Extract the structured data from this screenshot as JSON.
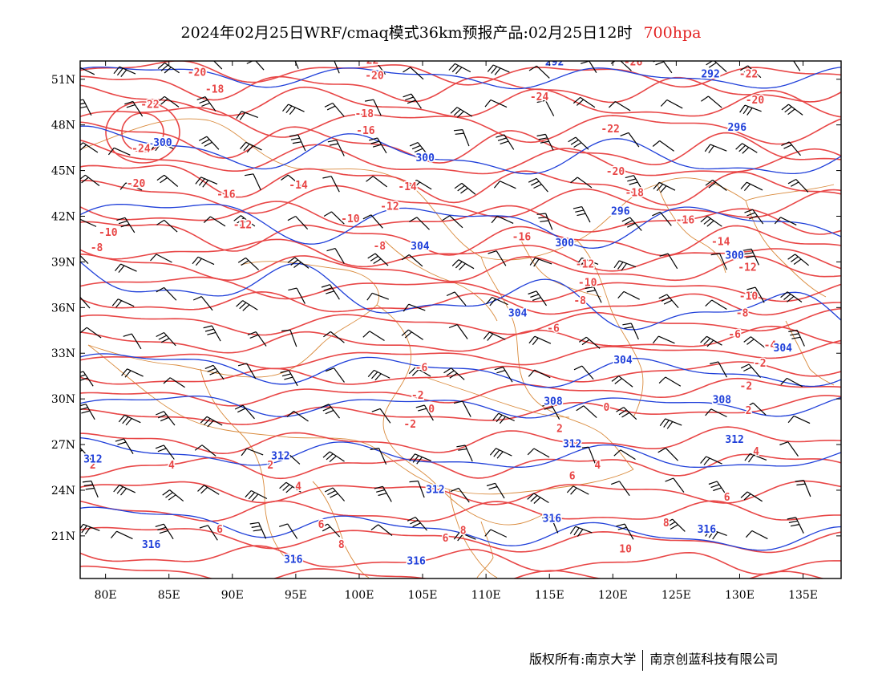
{
  "title": {
    "main": "2024年02月25日WRF/cmaq模式36km预报产品:02月25日12时",
    "level": "700hpa"
  },
  "axes": {
    "lon_ticks": [
      "80E",
      "85E",
      "90E",
      "95E",
      "100E",
      "105E",
      "110E",
      "115E",
      "120E",
      "125E",
      "130E",
      "135E"
    ],
    "lat_ticks": [
      "51N",
      "48N",
      "45N",
      "42N",
      "39N",
      "36N",
      "33N",
      "30N",
      "27N",
      "24N",
      "21N"
    ],
    "lon_range": [
      78,
      138
    ],
    "lat_range": [
      18.2,
      52.2
    ]
  },
  "colors": {
    "temperature": "#e84646",
    "height": "#1f3fd9",
    "border": "#d98a3c",
    "wind": "#000000",
    "level": "#e32222"
  },
  "temperature_labels": [
    {
      "text": "-20",
      "lon": 87.2,
      "lat": 51.4
    },
    {
      "text": "-22",
      "lon": 100.8,
      "lat": 52.2
    },
    {
      "text": "-26",
      "lon": 121.6,
      "lat": 52.1
    },
    {
      "text": "-22",
      "lon": 130.7,
      "lat": 51.3
    },
    {
      "text": "-20",
      "lon": 101.2,
      "lat": 51.2
    },
    {
      "text": "-18",
      "lon": 88.6,
      "lat": 50.3
    },
    {
      "text": "-24",
      "lon": 114.2,
      "lat": 49.8
    },
    {
      "text": "-20",
      "lon": 131.2,
      "lat": 49.6
    },
    {
      "text": "-22",
      "lon": 83.5,
      "lat": 49.3
    },
    {
      "text": "-24",
      "lon": 82.8,
      "lat": 46.4
    },
    {
      "text": "-18",
      "lon": 100.4,
      "lat": 48.7
    },
    {
      "text": "-16",
      "lon": 100.5,
      "lat": 47.6
    },
    {
      "text": "-22",
      "lon": 119.8,
      "lat": 47.7
    },
    {
      "text": "-20",
      "lon": 82.4,
      "lat": 44.1
    },
    {
      "text": "-20",
      "lon": 120.2,
      "lat": 44.9
    },
    {
      "text": "-16",
      "lon": 89.5,
      "lat": 43.4
    },
    {
      "text": "-14",
      "lon": 95.2,
      "lat": 44.0
    },
    {
      "text": "-14",
      "lon": 103.8,
      "lat": 43.9
    },
    {
      "text": "-18",
      "lon": 121.7,
      "lat": 43.5
    },
    {
      "text": "-12",
      "lon": 102.4,
      "lat": 42.6
    },
    {
      "text": "-16",
      "lon": 125.7,
      "lat": 41.7
    },
    {
      "text": "-10",
      "lon": 80.2,
      "lat": 40.9
    },
    {
      "text": "-12",
      "lon": 90.8,
      "lat": 41.4
    },
    {
      "text": "-10",
      "lon": 99.3,
      "lat": 41.8
    },
    {
      "text": "-8",
      "lon": 79.3,
      "lat": 39.9
    },
    {
      "text": "-8",
      "lon": 101.6,
      "lat": 40.0
    },
    {
      "text": "-16",
      "lon": 112.8,
      "lat": 40.6
    },
    {
      "text": "-14",
      "lon": 128.5,
      "lat": 40.3
    },
    {
      "text": "-12",
      "lon": 117.8,
      "lat": 38.8
    },
    {
      "text": "-12",
      "lon": 130.6,
      "lat": 38.6
    },
    {
      "text": "-10",
      "lon": 118.0,
      "lat": 37.6
    },
    {
      "text": "-10",
      "lon": 130.7,
      "lat": 36.7
    },
    {
      "text": "-8",
      "lon": 117.4,
      "lat": 36.4
    },
    {
      "text": "-8",
      "lon": 130.2,
      "lat": 35.6
    },
    {
      "text": "-6",
      "lon": 115.3,
      "lat": 34.6
    },
    {
      "text": "-6",
      "lon": 129.6,
      "lat": 34.2
    },
    {
      "text": "-4",
      "lon": 132.4,
      "lat": 33.5
    },
    {
      "text": "-2",
      "lon": 131.6,
      "lat": 32.3
    },
    {
      "text": "-6",
      "lon": 104.9,
      "lat": 32.0
    },
    {
      "text": "-2",
      "lon": 104.6,
      "lat": 30.2
    },
    {
      "text": "0",
      "lon": 105.7,
      "lat": 29.3
    },
    {
      "text": "0",
      "lon": 119.5,
      "lat": 29.4
    },
    {
      "text": "-2",
      "lon": 130.5,
      "lat": 30.8
    },
    {
      "text": "2",
      "lon": 130.7,
      "lat": 29.2
    },
    {
      "text": "-2",
      "lon": 104.0,
      "lat": 28.3
    },
    {
      "text": "2",
      "lon": 115.8,
      "lat": 28.0
    },
    {
      "text": "4",
      "lon": 131.3,
      "lat": 26.5
    },
    {
      "text": "2",
      "lon": 79.0,
      "lat": 25.6
    },
    {
      "text": "4",
      "lon": 85.2,
      "lat": 25.6
    },
    {
      "text": "2",
      "lon": 93.0,
      "lat": 25.6
    },
    {
      "text": "4",
      "lon": 118.8,
      "lat": 25.6
    },
    {
      "text": "4",
      "lon": 95.2,
      "lat": 24.2
    },
    {
      "text": "6",
      "lon": 116.8,
      "lat": 24.9
    },
    {
      "text": "6",
      "lon": 129.0,
      "lat": 23.5
    },
    {
      "text": "6",
      "lon": 97.0,
      "lat": 21.7
    },
    {
      "text": "6",
      "lon": 89.0,
      "lat": 21.4
    },
    {
      "text": "6",
      "lon": 106.8,
      "lat": 20.8
    },
    {
      "text": "8",
      "lon": 124.2,
      "lat": 21.8
    },
    {
      "text": "8",
      "lon": 108.2,
      "lat": 21.3
    },
    {
      "text": "8",
      "lon": 98.6,
      "lat": 20.4
    },
    {
      "text": "10",
      "lon": 121.0,
      "lat": 20.1
    }
  ],
  "height_labels": [
    {
      "text": "292",
      "lon": 115.4,
      "lat": 52.1
    },
    {
      "text": "292",
      "lon": 127.7,
      "lat": 51.3
    },
    {
      "text": "300",
      "lon": 84.5,
      "lat": 46.8
    },
    {
      "text": "296",
      "lon": 129.8,
      "lat": 47.8
    },
    {
      "text": "300",
      "lon": 105.2,
      "lat": 45.8
    },
    {
      "text": "296",
      "lon": 120.6,
      "lat": 42.3
    },
    {
      "text": "304",
      "lon": 104.8,
      "lat": 40.0
    },
    {
      "text": "300",
      "lon": 116.2,
      "lat": 40.2
    },
    {
      "text": "300",
      "lon": 129.6,
      "lat": 39.4
    },
    {
      "text": "304",
      "lon": 112.5,
      "lat": 35.6
    },
    {
      "text": "304",
      "lon": 133.4,
      "lat": 33.3
    },
    {
      "text": "304",
      "lon": 120.8,
      "lat": 32.5
    },
    {
      "text": "308",
      "lon": 115.3,
      "lat": 29.8
    },
    {
      "text": "308",
      "lon": 128.6,
      "lat": 29.9
    },
    {
      "text": "312",
      "lon": 116.8,
      "lat": 27.0
    },
    {
      "text": "312",
      "lon": 129.6,
      "lat": 27.3
    },
    {
      "text": "312",
      "lon": 79.0,
      "lat": 26.0
    },
    {
      "text": "312",
      "lon": 93.8,
      "lat": 26.2
    },
    {
      "text": "312",
      "lon": 106.0,
      "lat": 24.0
    },
    {
      "text": "316",
      "lon": 115.2,
      "lat": 22.1
    },
    {
      "text": "316",
      "lon": 127.4,
      "lat": 21.4
    },
    {
      "text": "316",
      "lon": 83.6,
      "lat": 20.4
    },
    {
      "text": "316",
      "lon": 94.8,
      "lat": 19.4
    },
    {
      "text": "316",
      "lon": 104.5,
      "lat": 19.3
    }
  ],
  "footer": {
    "left": "版权所有:南京大学",
    "right": "南京创蓝科技有限公司"
  }
}
